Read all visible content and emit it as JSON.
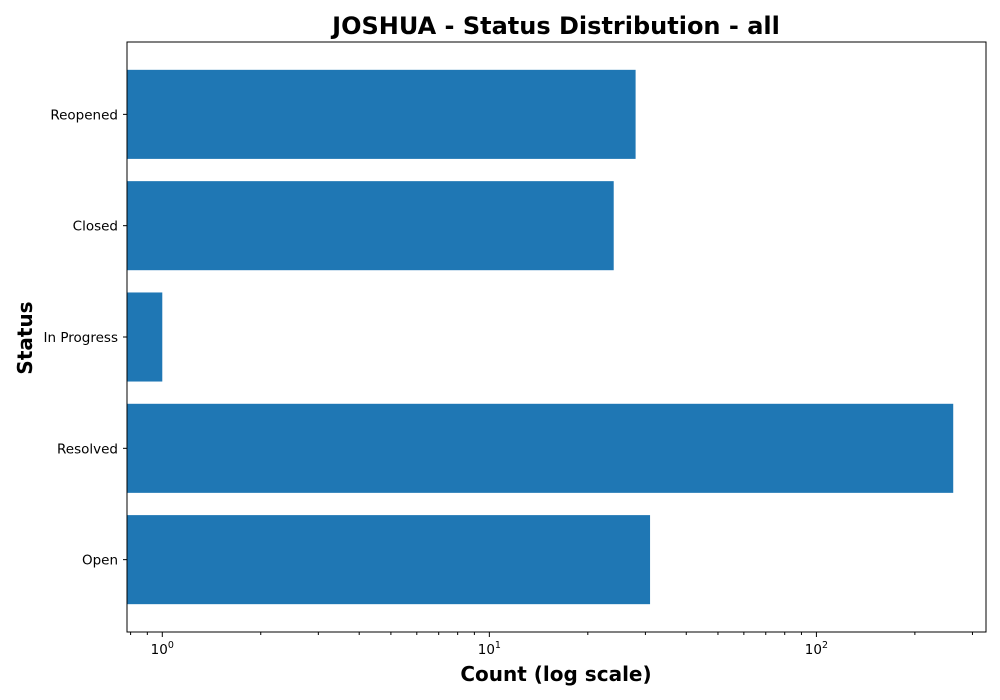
{
  "chart_data": {
    "type": "bar",
    "orientation": "horizontal",
    "title": "JOSHUA - Status Distribution - all",
    "xlabel": "Count (log scale)",
    "ylabel": "Status",
    "x_scale": "log",
    "xlim": [
      0.78,
      330
    ],
    "x_ticks": [
      {
        "value": 1,
        "base": "10",
        "exp": "0"
      },
      {
        "value": 10,
        "base": "10",
        "exp": "1"
      },
      {
        "value": 100,
        "base": "10",
        "exp": "2"
      }
    ],
    "categories": [
      "Open",
      "Resolved",
      "In Progress",
      "Closed",
      "Reopened"
    ],
    "values": [
      31,
      262,
      1,
      24,
      28
    ],
    "bar_color": "#1f77b4",
    "grid": false,
    "legend": "none"
  }
}
